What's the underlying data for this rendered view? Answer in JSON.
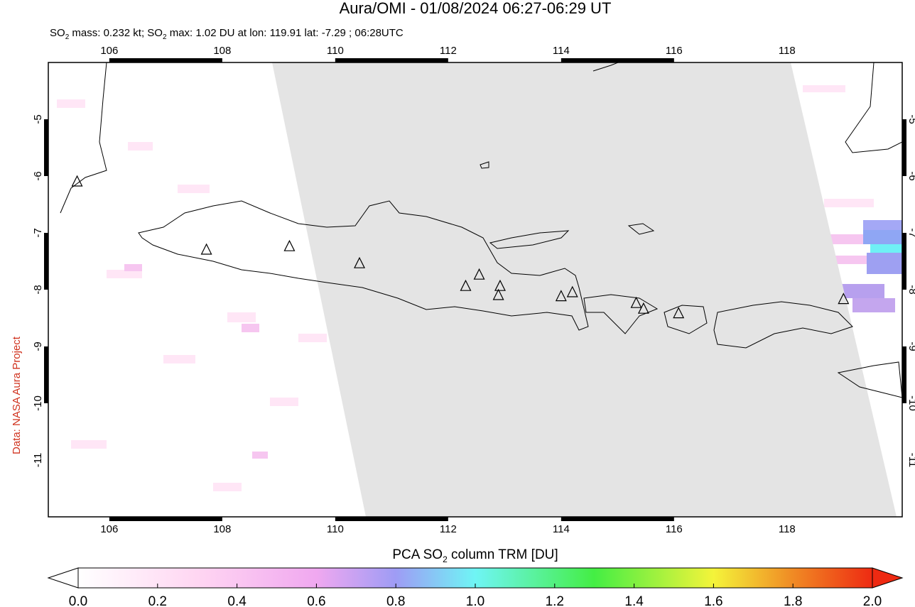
{
  "map": {
    "title": "Aura/OMI - 01/08/2024 06:27-06:29 UT",
    "subtitle_parts": [
      "SO",
      "2",
      " mass: 0.232 kt; SO",
      "2",
      " max: 1.02 DU at lon: 119.91 lat: -7.29 ; 06:28UTC"
    ],
    "xlim": [
      104.92,
      120.04
    ],
    "ylim": [
      -12,
      -4
    ],
    "xticks": [
      106,
      108,
      110,
      112,
      114,
      116,
      118
    ],
    "yticks": [
      -5,
      -6,
      -7,
      -8,
      -9,
      -10,
      -11
    ],
    "grid": true,
    "volcanoes": [
      {
        "lon": 105.43,
        "lat": -6.1
      },
      {
        "lon": 107.72,
        "lat": -7.3
      },
      {
        "lon": 109.19,
        "lat": -7.24
      },
      {
        "lon": 110.43,
        "lat": -7.54
      },
      {
        "lon": 112.31,
        "lat": -7.94
      },
      {
        "lon": 112.55,
        "lat": -7.74
      },
      {
        "lon": 112.92,
        "lat": -7.94
      },
      {
        "lon": 112.89,
        "lat": -8.1
      },
      {
        "lon": 114.0,
        "lat": -8.12
      },
      {
        "lon": 114.2,
        "lat": -8.05
      },
      {
        "lon": 115.33,
        "lat": -8.24
      },
      {
        "lon": 115.46,
        "lat": -8.34
      },
      {
        "lon": 116.08,
        "lat": -8.42
      },
      {
        "lon": 119.0,
        "lat": -8.17
      }
    ]
  },
  "colorbar": {
    "label_parts": [
      "PCA SO",
      "2",
      " column TRM [DU]"
    ],
    "range": [
      0,
      2
    ],
    "ticks": [
      {
        "value": 0,
        "label": "0.0"
      },
      {
        "value": 0.2,
        "label": "0.2"
      },
      {
        "value": 0.4,
        "label": "0.4"
      },
      {
        "value": 0.6,
        "label": "0.6"
      },
      {
        "value": 0.8,
        "label": "0.8"
      },
      {
        "value": 1.0,
        "label": "1.0"
      },
      {
        "value": 1.2,
        "label": "1.2"
      },
      {
        "value": 1.4,
        "label": "1.4"
      },
      {
        "value": 1.6,
        "label": "1.6"
      },
      {
        "value": 1.8,
        "label": "1.8"
      },
      {
        "value": 2.0,
        "label": "2.0"
      }
    ]
  },
  "credit": "Data: NASA Aura Project"
}
